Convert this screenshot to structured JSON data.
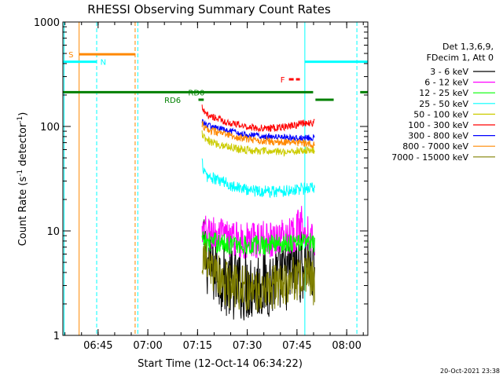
{
  "chart_data": {
    "type": "line",
    "title": "RHESSI Observing Summary Count Rates",
    "xlabel": "Start Time (12-Oct-14 06:34:22)",
    "ylabel_main": "Count Rate (s",
    "ylabel_sup1": "-1",
    "ylabel_mid": " detector",
    "ylabel_sup2": "-1",
    "ylabel_end": ")",
    "x_unit": "minutes after 06:34:22",
    "xlim": [
      0,
      92
    ],
    "ylim": [
      1,
      1000
    ],
    "yscale": "log",
    "x_ticks": [
      {
        "label": "06:45",
        "value": 10.63
      },
      {
        "label": "07:00",
        "value": 25.63
      },
      {
        "label": "07:15",
        "value": 40.63
      },
      {
        "label": "07:30",
        "value": 55.63
      },
      {
        "label": "07:45",
        "value": 70.63
      },
      {
        "label": "08:00",
        "value": 85.63
      }
    ],
    "y_ticks": [
      {
        "label": "1",
        "value": 1
      },
      {
        "label": "10",
        "value": 10
      },
      {
        "label": "100",
        "value": 100
      },
      {
        "label": "1000",
        "value": 1000
      }
    ],
    "legend": {
      "header": [
        "Det 1,3,6,9,",
        "FDecim 1, Att 0"
      ],
      "position": "right"
    },
    "series": [
      {
        "name": "3 - 6 keV",
        "color": "#000000",
        "start": 42.5,
        "end": 76.0,
        "amp": 0.35,
        "points": [
          [
            42.5,
            6.0
          ],
          [
            45,
            4.5
          ],
          [
            50,
            3.2
          ],
          [
            55,
            3.0
          ],
          [
            60,
            3.1
          ],
          [
            65,
            3.4
          ],
          [
            70,
            4.2
          ],
          [
            74,
            5.0
          ],
          [
            76,
            4.0
          ]
        ]
      },
      {
        "name": "6 - 12 keV",
        "color": "#ff00ff",
        "start": 42.0,
        "end": 76.0,
        "amp": 0.18,
        "points": [
          [
            42,
            9.5
          ],
          [
            45,
            9.5
          ],
          [
            50,
            8.5
          ],
          [
            55,
            8.0
          ],
          [
            60,
            8.2
          ],
          [
            65,
            8.6
          ],
          [
            70,
            9.5
          ],
          [
            72,
            12.0
          ],
          [
            74,
            9.5
          ],
          [
            76,
            8.5
          ]
        ]
      },
      {
        "name": "12 - 25 keV",
        "color": "#00ff00",
        "start": 42.0,
        "end": 76.0,
        "amp": 0.1,
        "points": [
          [
            42,
            8.0
          ],
          [
            45,
            7.8
          ],
          [
            50,
            7.5
          ],
          [
            55,
            7.3
          ],
          [
            60,
            7.4
          ],
          [
            65,
            7.6
          ],
          [
            70,
            7.8
          ],
          [
            76,
            7.6
          ]
        ]
      },
      {
        "name": "25 - 50 keV",
        "color": "#00ffff",
        "start": 42.0,
        "end": 76.0,
        "amp": 0.06,
        "points": [
          [
            42,
            45
          ],
          [
            43,
            34
          ],
          [
            45,
            32
          ],
          [
            50,
            28
          ],
          [
            55,
            25
          ],
          [
            60,
            24
          ],
          [
            65,
            24
          ],
          [
            70,
            25
          ],
          [
            76,
            26
          ]
        ]
      },
      {
        "name": "50 - 100 keV",
        "color": "#cccc00",
        "start": 42.0,
        "end": 76.0,
        "amp": 0.04,
        "points": [
          [
            42,
            85
          ],
          [
            43,
            74
          ],
          [
            45,
            70
          ],
          [
            50,
            64
          ],
          [
            55,
            60
          ],
          [
            60,
            58
          ],
          [
            65,
            57
          ],
          [
            70,
            58
          ],
          [
            76,
            60
          ]
        ]
      },
      {
        "name": "100 - 300 keV",
        "color": "#ff0000",
        "start": 42.0,
        "end": 76.0,
        "amp": 0.035,
        "points": [
          [
            42,
            150
          ],
          [
            43,
            130
          ],
          [
            45,
            125
          ],
          [
            50,
            108
          ],
          [
            55,
            100
          ],
          [
            60,
            96
          ],
          [
            65,
            97
          ],
          [
            70,
            103
          ],
          [
            73,
            108
          ],
          [
            76,
            108
          ]
        ]
      },
      {
        "name": "300 - 800 keV",
        "color": "#0000ff",
        "start": 42.0,
        "end": 76.0,
        "amp": 0.03,
        "points": [
          [
            42,
            115
          ],
          [
            43,
            104
          ],
          [
            45,
            100
          ],
          [
            50,
            90
          ],
          [
            55,
            84
          ],
          [
            60,
            81
          ],
          [
            65,
            79
          ],
          [
            70,
            78
          ],
          [
            76,
            78
          ]
        ]
      },
      {
        "name": "800 - 7000 keV",
        "color": "#ff8800",
        "start": 42.0,
        "end": 76.0,
        "amp": 0.035,
        "points": [
          [
            42,
            105
          ],
          [
            43,
            95
          ],
          [
            45,
            90
          ],
          [
            50,
            82
          ],
          [
            55,
            76
          ],
          [
            60,
            73
          ],
          [
            65,
            71
          ],
          [
            70,
            70
          ],
          [
            76,
            68
          ]
        ]
      },
      {
        "name": "7000 - 15000 keV",
        "color": "#808000",
        "start": 42.0,
        "end": 76.0,
        "amp": 0.22,
        "points": [
          [
            42,
            5.5
          ],
          [
            45,
            4.0
          ],
          [
            50,
            3.0
          ],
          [
            55,
            2.8
          ],
          [
            60,
            2.7
          ],
          [
            65,
            3.0
          ],
          [
            70,
            3.5
          ],
          [
            74,
            4.0
          ],
          [
            76,
            3.0
          ]
        ]
      }
    ],
    "flags": [
      {
        "label": "S",
        "color": "#ff8800",
        "segments": [
          [
            4.9,
            21.8
          ]
        ],
        "level": 0.897,
        "label_at": 3.2,
        "label_side": "left"
      },
      {
        "label": "N",
        "color": "#00ffff",
        "segments": [
          [
            0,
            10.2
          ],
          [
            73,
            92
          ]
        ],
        "level": 0.873,
        "label_at": 11.3,
        "label_side": "right"
      },
      {
        "label": "F",
        "color": "#ff0000",
        "segments": [
          [
            68.2,
            71.5
          ]
        ],
        "level": 0.817,
        "label_at": 67.0,
        "label_side": "left"
      },
      {
        "label": "RD0",
        "color": "#008000",
        "segments": [
          [
            0,
            75.5
          ],
          [
            89.7,
            92
          ]
        ],
        "level": 0.776,
        "label_at": 37.8,
        "label_side": "right"
      },
      {
        "label": "RD6",
        "color": "#008000",
        "segments": [
          [
            40.9,
            42.5
          ],
          [
            76.2,
            81.7
          ]
        ],
        "level": 0.752,
        "label_at": 35.6,
        "label_side": "left"
      }
    ],
    "vertical_markers": [
      {
        "x": 0.35,
        "color": "#00ffff",
        "style": "solid"
      },
      {
        "x": 4.9,
        "color": "#ff8800",
        "style": "solid"
      },
      {
        "x": 10.2,
        "color": "#00ffff",
        "style": "dashed"
      },
      {
        "x": 21.8,
        "color": "#ff8800",
        "style": "dashed"
      },
      {
        "x": 22.6,
        "color": "#00ffff",
        "style": "dashed"
      },
      {
        "x": 73.0,
        "color": "#00ffff",
        "style": "solid"
      },
      {
        "x": 88.7,
        "color": "#00ffff",
        "style": "dashed"
      }
    ],
    "grid": false
  },
  "footer": {
    "timestamp": "20-Oct-2021 23:38"
  }
}
